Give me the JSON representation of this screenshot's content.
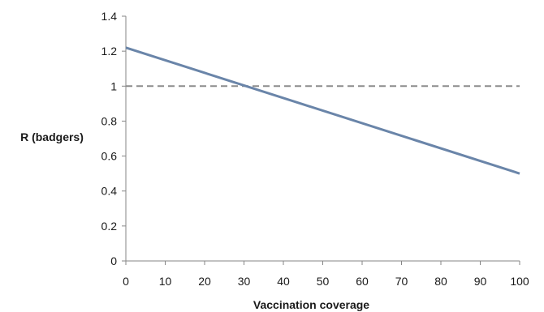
{
  "chart_data": {
    "type": "line",
    "title": "",
    "xlabel": "Vaccination coverage",
    "ylabel": "R (badgers)",
    "xlim": [
      0,
      100
    ],
    "ylim": [
      0,
      1.4
    ],
    "x_ticks": [
      0,
      10,
      20,
      30,
      40,
      50,
      60,
      70,
      80,
      90,
      100
    ],
    "y_ticks": [
      0,
      0.2,
      0.4,
      0.6,
      0.8,
      1,
      1.2,
      1.4
    ],
    "grid": false,
    "legend": "none",
    "series": [
      {
        "style": "solid",
        "color": "#6a85a9",
        "x": [
          0,
          100
        ],
        "y": [
          1.22,
          0.5
        ]
      },
      {
        "style": "dashed",
        "color": "#8c8c8c",
        "x": [
          0,
          100
        ],
        "y": [
          1,
          1
        ]
      }
    ]
  }
}
